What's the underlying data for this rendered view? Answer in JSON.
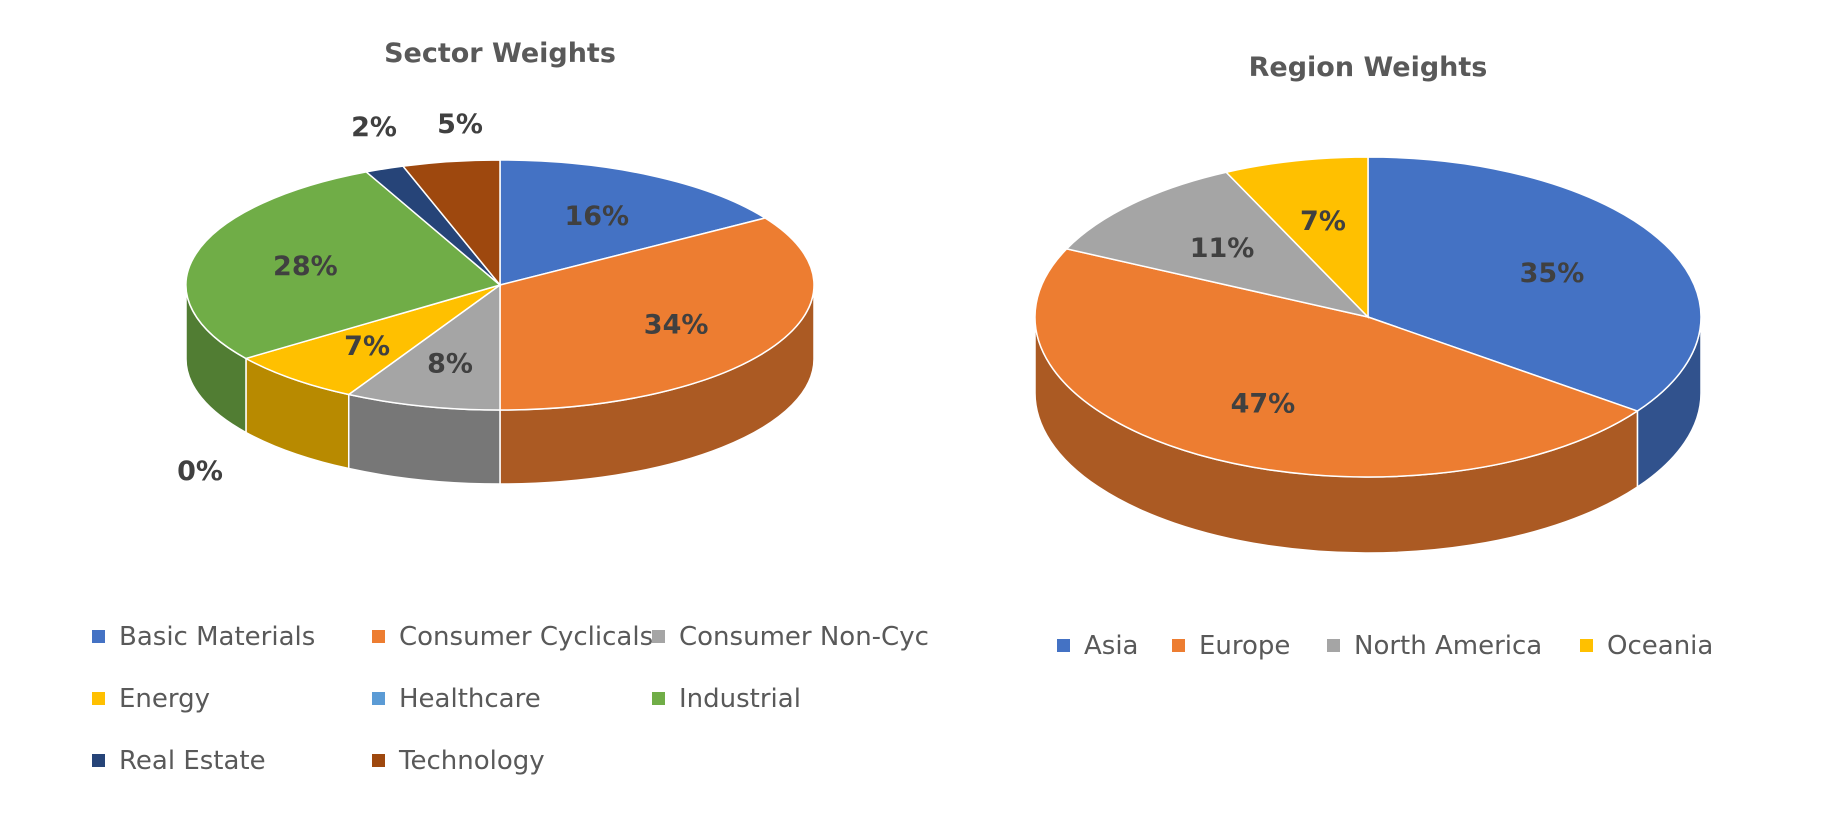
{
  "chart_data": [
    {
      "type": "pie",
      "style": "3d-pie",
      "title": "Sector Weights",
      "legend_position": "bottom",
      "categories": [
        "Basic Materials",
        "Consumer Cyclicals",
        "Consumer Non-Cyc",
        "Energy",
        "Healthcare",
        "Industrial",
        "Real Estate",
        "Technology"
      ],
      "values": [
        16,
        34,
        8,
        7,
        0,
        28,
        2,
        5
      ],
      "value_labels": [
        "16%",
        "34%",
        "8%",
        "7%",
        "0%",
        "28%",
        "2%",
        "5%"
      ],
      "colors": [
        "#4472C4",
        "#ED7D31",
        "#A5A5A5",
        "#FFC000",
        "#5B9BD5",
        "#70AD47",
        "#264478",
        "#9E480E"
      ]
    },
    {
      "type": "pie",
      "style": "3d-pie",
      "title": "Region Weights",
      "legend_position": "bottom",
      "categories": [
        "Asia",
        "Europe",
        "North America",
        "Oceania"
      ],
      "values": [
        35,
        47,
        11,
        7
      ],
      "value_labels": [
        "35%",
        "47%",
        "11%",
        "7%"
      ],
      "colors": [
        "#4472C4",
        "#ED7D31",
        "#A5A5A5",
        "#FFC000"
      ]
    }
  ]
}
